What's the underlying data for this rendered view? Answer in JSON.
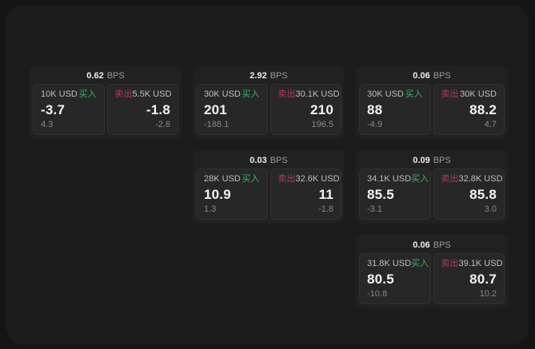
{
  "colors": {
    "buy_green": "#3fae63",
    "sell_red": "#b23a55",
    "panel_bg": "#1c1c1c",
    "card_bg": "#212121",
    "tile_bg": "#272727"
  },
  "cards": [
    {
      "bps": "0.62",
      "bps_unit": "BPS",
      "grid": {
        "row": 1,
        "col": 1
      },
      "buy": {
        "amount": "10K USD",
        "side_label": "买入",
        "price": "-3.7",
        "delta": "4.3"
      },
      "sell": {
        "side_label": "卖出",
        "amount": "5.5K USD",
        "price": "-1.8",
        "delta": "-2.6"
      }
    },
    {
      "bps": "2.92",
      "bps_unit": "BPS",
      "grid": {
        "row": 1,
        "col": 2
      },
      "buy": {
        "amount": "30K USD",
        "side_label": "买入",
        "price": "201",
        "delta": "-188.1"
      },
      "sell": {
        "side_label": "卖出",
        "amount": "30.1K USD",
        "price": "210",
        "delta": "196.5"
      }
    },
    {
      "bps": "0.06",
      "bps_unit": "BPS",
      "grid": {
        "row": 1,
        "col": 3
      },
      "buy": {
        "amount": "30K USD",
        "side_label": "买入",
        "price": "88",
        "delta": "-4.9"
      },
      "sell": {
        "side_label": "卖出",
        "amount": "30K USD",
        "price": "88.2",
        "delta": "4.7"
      }
    },
    {
      "bps": "0.03",
      "bps_unit": "BPS",
      "grid": {
        "row": 2,
        "col": 2
      },
      "buy": {
        "amount": "28K USD",
        "side_label": "买入",
        "price": "10.9",
        "delta": "1.3"
      },
      "sell": {
        "side_label": "卖出",
        "amount": "32.6K USD",
        "price": "11",
        "delta": "-1.8"
      }
    },
    {
      "bps": "0.09",
      "bps_unit": "BPS",
      "grid": {
        "row": 2,
        "col": 3
      },
      "buy": {
        "amount": "34.1K USD",
        "side_label": "买入",
        "price": "85.5",
        "delta": "-3.1"
      },
      "sell": {
        "side_label": "卖出",
        "amount": "32.8K USD",
        "price": "85.8",
        "delta": "3.0"
      }
    },
    {
      "bps": "0.06",
      "bps_unit": "BPS",
      "grid": {
        "row": 3,
        "col": 3
      },
      "buy": {
        "amount": "31.8K USD",
        "side_label": "买入",
        "price": "80.5",
        "delta": "-10.8"
      },
      "sell": {
        "side_label": "卖出",
        "amount": "39.1K USD",
        "price": "80.7",
        "delta": "10.2"
      }
    }
  ]
}
